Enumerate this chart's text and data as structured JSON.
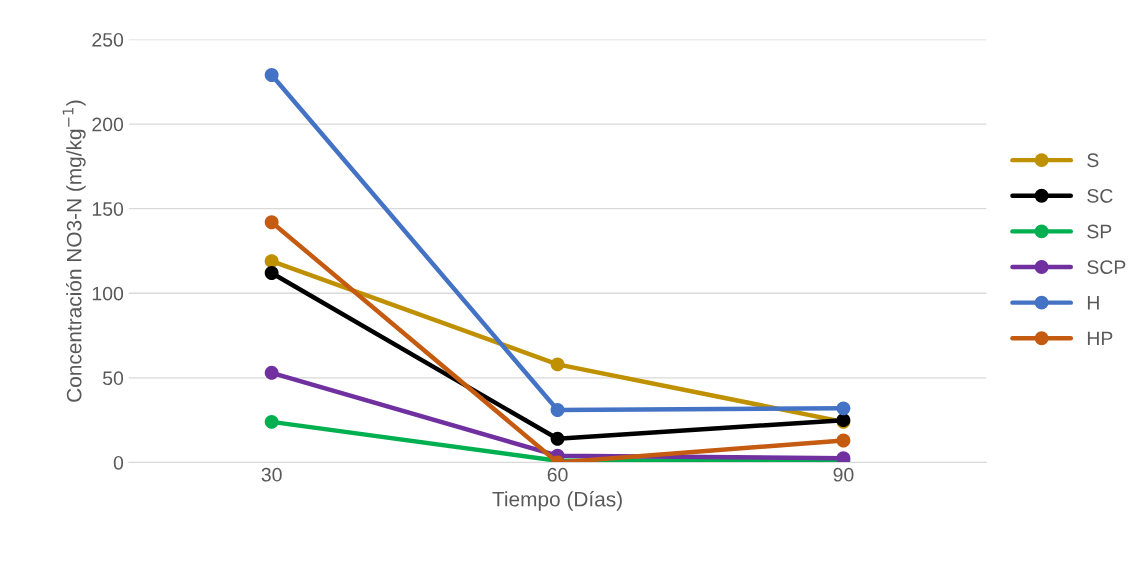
{
  "chart_data": {
    "type": "line",
    "xlabel": "Tiempo (Días)",
    "ylabel": "Concentración NO3-N (mg/kg$^{−1}$)",
    "categories": [
      "30",
      "60",
      "90"
    ],
    "series": [
      {
        "name": "S",
        "color": "#bf9000",
        "values": [
          119,
          58,
          24
        ]
      },
      {
        "name": "SC",
        "color": "#000000",
        "values": [
          112,
          14,
          25
        ]
      },
      {
        "name": "SP",
        "color": "#00b050",
        "values": [
          24,
          1,
          1
        ]
      },
      {
        "name": "SCP",
        "color": "#7030a0",
        "values": [
          53,
          4,
          2.5
        ]
      },
      {
        "name": "H",
        "color": "#4472c4",
        "values": [
          229,
          31,
          32
        ]
      },
      {
        "name": "HP",
        "color": "#c55a11",
        "values": [
          142,
          0,
          13
        ]
      }
    ],
    "ylim": [
      0,
      250
    ],
    "yticks": [
      0,
      50,
      100,
      150,
      200,
      250
    ],
    "grid": "y",
    "legend": "right",
    "marker": "circle",
    "line_style": "solid"
  }
}
